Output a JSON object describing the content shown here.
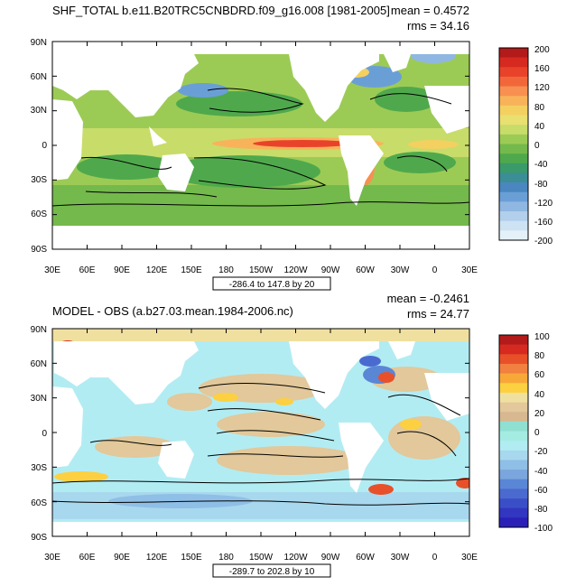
{
  "chart_data": [
    {
      "type": "heatmap",
      "title": "SHF_TOTAL b.e11.B20TRC5CNBDRD.f09_g16.008 [1981-2005]",
      "stats": {
        "mean": "mean = 0.4572",
        "rms": "rms = 34.16"
      },
      "x_ticks": [
        "30E",
        "60E",
        "90E",
        "120E",
        "150E",
        "180",
        "150W",
        "120W",
        "90W",
        "60W",
        "30W",
        "0",
        "30E"
      ],
      "y_ticks": [
        "90N",
        "60N",
        "30N",
        "0",
        "30S",
        "60S",
        "90S"
      ],
      "xlim": [
        30,
        390
      ],
      "ylim": [
        -90,
        90
      ],
      "contour_info": "-286.4 to 147.8 by 20",
      "colorbar": {
        "labels": [
          "200",
          "160",
          "120",
          "80",
          "40",
          "0",
          "-40",
          "-80",
          "-120",
          "-160",
          "-200"
        ],
        "colors": [
          "#b31a1a",
          "#d62a20",
          "#e8432a",
          "#f2673a",
          "#f79050",
          "#f8b35a",
          "#f3d060",
          "#e8e070",
          "#c8dc6a",
          "#9ccb55",
          "#74b94c",
          "#4fa94c",
          "#3a9a6a",
          "#3b8e95",
          "#4a86bf",
          "#6a9fd6",
          "#8fb7e2",
          "#b2cfec",
          "#cde2f3",
          "#e4f1f9"
        ]
      },
      "field": {
        "land_color": "#ffffff",
        "regions": [
          {
            "region": "equatorial Pacific cold tongue",
            "lon_range": [
              150,
              275
            ],
            "lat_range": [
              -5,
              8
            ],
            "value_range": [
              80,
              200
            ]
          },
          {
            "region": "Gulf Stream / Kuroshio",
            "value_range": [
              -200,
              -120
            ]
          },
          {
            "region": "subtropical oceans",
            "value_range": [
              -80,
              -20
            ]
          }
        ]
      }
    },
    {
      "type": "heatmap",
      "title": "MODEL - OBS (a.b27.03.mean.1984-2006.nc)",
      "stats": {
        "mean": "mean = -0.2461",
        "rms": "rms = 24.77"
      },
      "x_ticks": [
        "30E",
        "60E",
        "90E",
        "120E",
        "150E",
        "180",
        "150W",
        "120W",
        "90W",
        "60W",
        "30W",
        "0",
        "30E"
      ],
      "y_ticks": [
        "90N",
        "60N",
        "30N",
        "0",
        "30S",
        "60S",
        "90S"
      ],
      "xlim": [
        30,
        390
      ],
      "ylim": [
        -90,
        90
      ],
      "contour_info": "-289.7 to 202.8 by 10",
      "colorbar": {
        "labels": [
          "100",
          "80",
          "60",
          "40",
          "20",
          "0",
          "-20",
          "-40",
          "-60",
          "-80",
          "-100"
        ],
        "colors": [
          "#b31a1a",
          "#d62a20",
          "#e8502a",
          "#f28040",
          "#f8a838",
          "#fcd040",
          "#f0e0a0",
          "#e2c89a",
          "#d8b890",
          "#90e0d2",
          "#a4ece2",
          "#b2ecf3",
          "#a8d8ee",
          "#8fbfe6",
          "#7aa6dd",
          "#5a86d6",
          "#4a6ad0",
          "#3a4ec8",
          "#3236c0",
          "#2a20b8"
        ]
      },
      "field": {
        "land_color": "#ffffff",
        "regions": [
          {
            "region": "Arctic / high latitudes",
            "value_range": [
              0,
              20
            ]
          },
          {
            "region": "Gulf Stream",
            "value_range": [
              -100,
              100
            ]
          },
          {
            "region": "tropical / subtropical oceans",
            "value_range": [
              -20,
              20
            ]
          }
        ]
      }
    }
  ]
}
